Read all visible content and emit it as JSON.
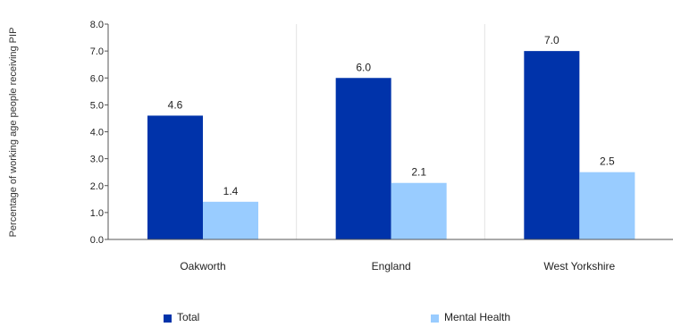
{
  "chart_data": {
    "type": "bar",
    "title": "",
    "xlabel": "",
    "ylabel": "Percentage of working age people receiving PIP",
    "categories": [
      "Oakworth",
      "England",
      "West Yorkshire"
    ],
    "series": [
      {
        "name": "Total",
        "values": [
          4.6,
          6.0,
          7.0
        ],
        "color": "#0033aa"
      },
      {
        "name": "Mental Health",
        "values": [
          1.4,
          2.1,
          2.5
        ],
        "color": "#99ccff"
      }
    ],
    "ylim": [
      0,
      8
    ],
    "yticks": [
      "0.0",
      "1.0",
      "2.0",
      "3.0",
      "4.0",
      "5.0",
      "6.0",
      "7.0",
      "8.0"
    ],
    "data_labels": [
      [
        "4.6",
        "6.0",
        "7.0"
      ],
      [
        "1.4",
        "2.1",
        "2.5"
      ]
    ],
    "grid": "vertical category separators",
    "legend_position": "bottom"
  }
}
